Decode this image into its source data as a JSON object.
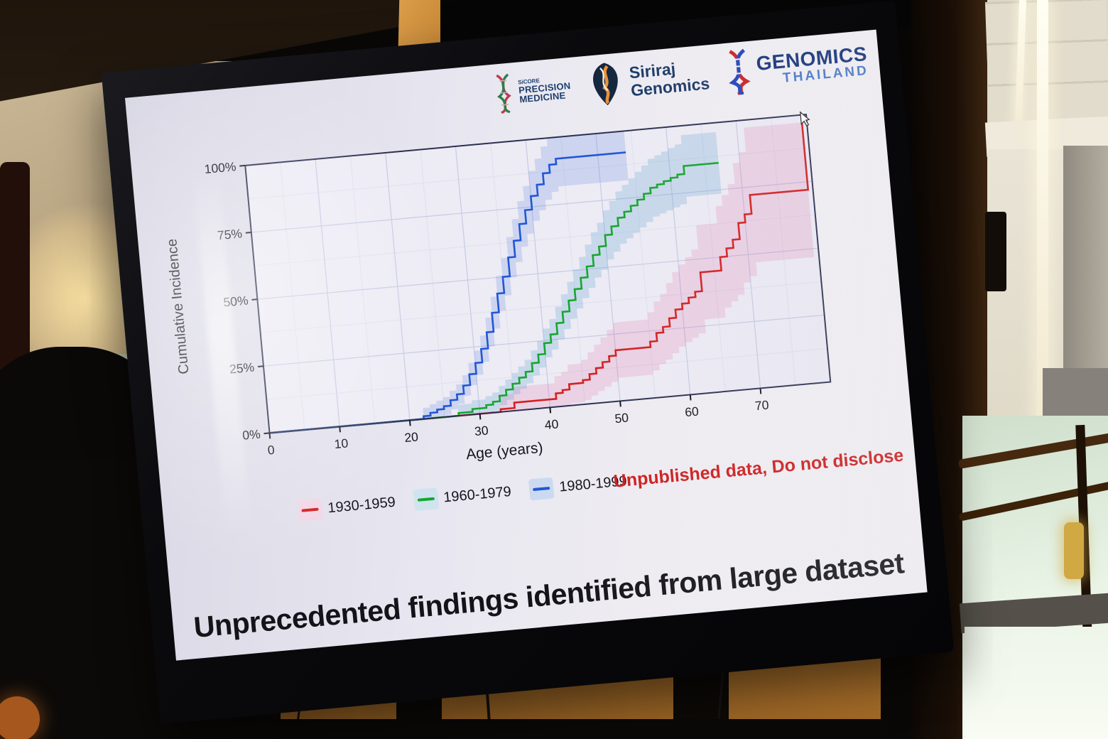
{
  "slide": {
    "logos": {
      "precision": {
        "l1": "SiCORE",
        "l2": "PRECISION",
        "l3": "MEDICINE"
      },
      "siriraj": {
        "l1": "Siriraj",
        "l2": "Genomics"
      },
      "thailand": {
        "l1": "GENOMICS",
        "l2": "THAILAND"
      }
    },
    "warning": "Unpublished data, Do not disclose",
    "title": "Unprecedented findings identified from large dataset"
  },
  "chart_data": {
    "type": "line",
    "subtype": "step-cumulative-incidence-with-confidence-bands",
    "title": "",
    "xlabel": "Age (years)",
    "ylabel": "Cumulative Incidence",
    "xlim": [
      0,
      80
    ],
    "ylim": [
      0,
      100
    ],
    "x_ticks": [
      0,
      10,
      20,
      30,
      40,
      50,
      60,
      70
    ],
    "y_ticks": [
      0,
      25,
      50,
      75,
      100
    ],
    "y_tick_labels": [
      "0%",
      "25%",
      "50%",
      "75%",
      "100%"
    ],
    "grid": true,
    "legend_position": "bottom",
    "annotations": [
      "Unpublished data, Do not disclose"
    ],
    "cursor_at": {
      "age": 79.2,
      "value": 100
    },
    "series": [
      {
        "name": "1930-1959",
        "color": "#d42020",
        "band_color": "rgba(228,60,140,0.15)",
        "legend_swatch": "#f2d7e6",
        "ci_base": 5,
        "ci_factor": 0.28,
        "points": [
          [
            0,
            0
          ],
          [
            31,
            0
          ],
          [
            33,
            1
          ],
          [
            35,
            3
          ],
          [
            41,
            5
          ],
          [
            42,
            6
          ],
          [
            43,
            8
          ],
          [
            45,
            9
          ],
          [
            46,
            11
          ],
          [
            47,
            13
          ],
          [
            48,
            15
          ],
          [
            49,
            17
          ],
          [
            50,
            19
          ],
          [
            55,
            21
          ],
          [
            56,
            24
          ],
          [
            57,
            26
          ],
          [
            58,
            29
          ],
          [
            59,
            32
          ],
          [
            60,
            34
          ],
          [
            61,
            36
          ],
          [
            62,
            38
          ],
          [
            63,
            45
          ],
          [
            66,
            50
          ],
          [
            67,
            53
          ],
          [
            68,
            56
          ],
          [
            69,
            62
          ],
          [
            70,
            65
          ],
          [
            71,
            72
          ],
          [
            79,
            72
          ],
          [
            79.3,
            100
          ]
        ]
      },
      {
        "name": "1960-1979",
        "color": "#17a62e",
        "band_color": "rgba(70,150,205,0.22)",
        "legend_swatch": "#cfe4ee",
        "ci_base": 3,
        "ci_factor": 0.1,
        "points": [
          [
            0,
            0
          ],
          [
            25,
            0
          ],
          [
            27,
            1
          ],
          [
            29,
            2
          ],
          [
            31,
            3
          ],
          [
            32,
            4
          ],
          [
            33,
            6
          ],
          [
            34,
            8
          ],
          [
            35,
            10
          ],
          [
            36,
            12
          ],
          [
            37,
            14
          ],
          [
            38,
            17
          ],
          [
            39,
            20
          ],
          [
            40,
            24
          ],
          [
            41,
            27
          ],
          [
            42,
            31
          ],
          [
            43,
            35
          ],
          [
            44,
            39
          ],
          [
            45,
            43
          ],
          [
            46,
            47
          ],
          [
            47,
            51
          ],
          [
            48,
            55
          ],
          [
            49,
            58
          ],
          [
            50,
            62
          ],
          [
            51,
            65
          ],
          [
            52,
            68
          ],
          [
            53,
            70
          ],
          [
            54,
            72
          ],
          [
            55,
            74
          ],
          [
            56,
            76
          ],
          [
            57,
            78
          ],
          [
            58,
            79
          ],
          [
            59,
            80
          ],
          [
            60,
            81
          ],
          [
            61,
            82
          ],
          [
            62,
            85
          ],
          [
            67,
            85
          ]
        ]
      },
      {
        "name": "1980-1999",
        "color": "#2157d6",
        "band_color": "rgba(90,130,225,0.22)",
        "legend_swatch": "#ccdaf1",
        "ci_base": 3,
        "ci_factor": 0.08,
        "points": [
          [
            0,
            0
          ],
          [
            20,
            0
          ],
          [
            22,
            1
          ],
          [
            23,
            2
          ],
          [
            24,
            3
          ],
          [
            25,
            4
          ],
          [
            26,
            6
          ],
          [
            27,
            8
          ],
          [
            28,
            11
          ],
          [
            29,
            15
          ],
          [
            30,
            19
          ],
          [
            31,
            24
          ],
          [
            32,
            30
          ],
          [
            33,
            37
          ],
          [
            34,
            44
          ],
          [
            35,
            50
          ],
          [
            36,
            57
          ],
          [
            37,
            63
          ],
          [
            38,
            69
          ],
          [
            39,
            74
          ],
          [
            40,
            79
          ],
          [
            41,
            83
          ],
          [
            42,
            87
          ],
          [
            43,
            90
          ],
          [
            44,
            92
          ],
          [
            54,
            92
          ]
        ]
      }
    ]
  }
}
